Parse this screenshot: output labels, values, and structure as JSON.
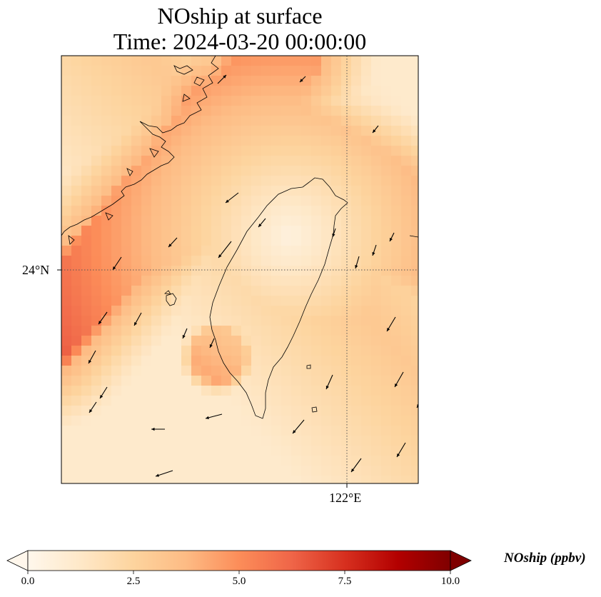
{
  "title": {
    "line1": "NOship at surface",
    "line2": "Time: 2024-03-20 00:00:00"
  },
  "axes": {
    "lat_label": "24°N",
    "lon_label": "122°E"
  },
  "colorbar": {
    "label": "NOship (ppbv)",
    "ticks": [
      "0.0",
      "2.5",
      "5.0",
      "7.5",
      "10.0"
    ],
    "range": [
      0,
      10
    ],
    "extend": "both",
    "colormap": "OrRd",
    "colors": [
      "#fff7ec",
      "#fee8c8",
      "#fdd49e",
      "#fdbb84",
      "#fc8d59",
      "#ef6548",
      "#d7301f",
      "#b30000",
      "#7f0000"
    ]
  },
  "map": {
    "field": "NOship",
    "level": "surface",
    "units": "ppbv",
    "gridlines": "dotted",
    "coastline_color": "#000000",
    "wind_vectors": true
  }
}
